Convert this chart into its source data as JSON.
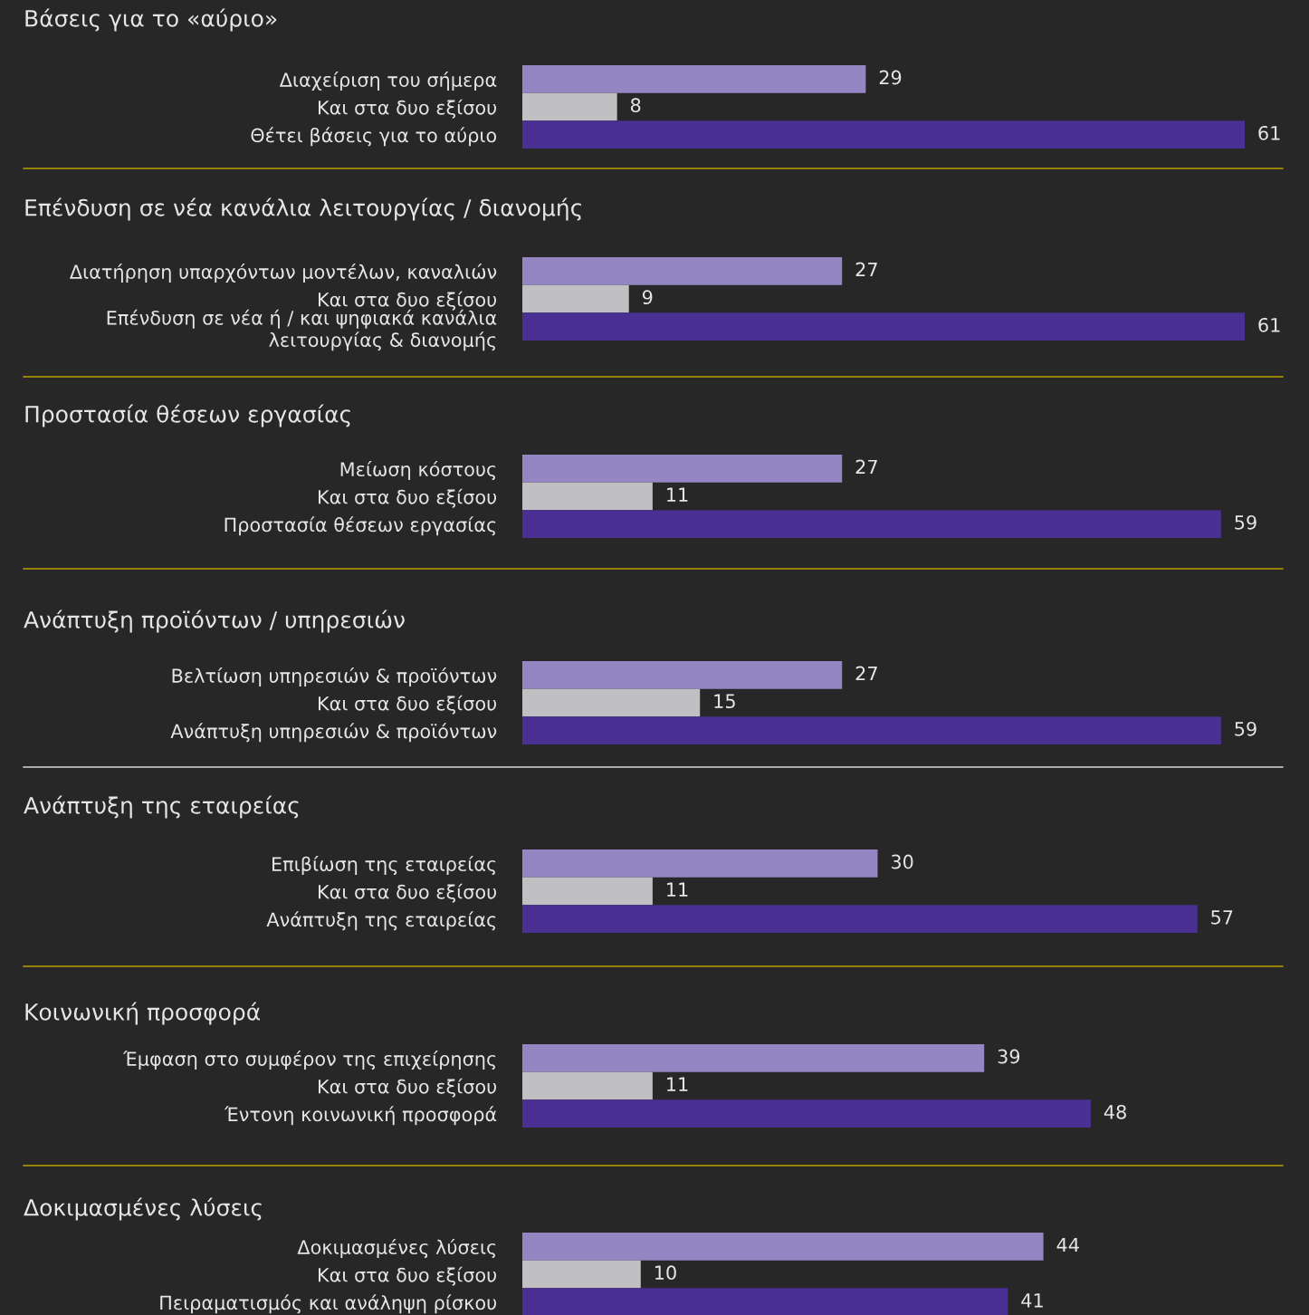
{
  "chart_data": [
    {
      "type": "bar",
      "orientation": "horizontal",
      "title": "Βάσεις για το «αύριο»",
      "categories": [
        "Διαχείριση του σήμερα",
        "Και στα δυο εξίσου",
        "Θέτει βάσεις για το αύριο"
      ],
      "values": [
        29,
        8,
        61
      ],
      "colors": [
        "#9386c2",
        "#c0c0c2",
        "#4b3093"
      ],
      "data_labels": true
    },
    {
      "type": "bar",
      "orientation": "horizontal",
      "title": "Επένδυση σε νέα κανάλια λειτουργίας / διανομής",
      "categories": [
        "Διατήρηση υπαρχόντων μοντέλων, καναλιών",
        "Και στα δυο εξίσου",
        "Επένδυση σε νέα ή / και ψηφιακά κανάλια\nλειτουργίας & διανομής"
      ],
      "values": [
        27,
        9,
        61
      ],
      "colors": [
        "#9386c2",
        "#c0c0c2",
        "#4b3093"
      ],
      "data_labels": true
    },
    {
      "type": "bar",
      "orientation": "horizontal",
      "title": "Προστασία θέσεων εργασίας",
      "categories": [
        "Μείωση κόστους",
        "Και στα δυο εξίσου",
        "Προστασία θέσεων εργασίας"
      ],
      "values": [
        27,
        11,
        59
      ],
      "colors": [
        "#9386c2",
        "#c0c0c2",
        "#4b3093"
      ],
      "data_labels": true
    },
    {
      "type": "bar",
      "orientation": "horizontal",
      "title": "Ανάπτυξη προϊόντων / υπηρεσιών",
      "categories": [
        "Βελτίωση υπηρεσιών & προϊόντων",
        "Και στα δυο εξίσου",
        "Ανάπτυξη υπηρεσιών & προϊόντων"
      ],
      "values": [
        27,
        15,
        59
      ],
      "colors": [
        "#9386c2",
        "#c0c0c2",
        "#4b3093"
      ],
      "data_labels": true
    },
    {
      "type": "bar",
      "orientation": "horizontal",
      "title": "Ανάπτυξη της εταιρείας",
      "categories": [
        "Επιβίωση της εταιρείας",
        "Και στα δυο εξίσου",
        "Ανάπτυξη της εταιρείας"
      ],
      "values": [
        30,
        11,
        57
      ],
      "colors": [
        "#9386c2",
        "#c0c0c2",
        "#4b3093"
      ],
      "data_labels": true
    },
    {
      "type": "bar",
      "orientation": "horizontal",
      "title": "Κοινωνική προσφορά",
      "categories": [
        "Έμφαση στο συμφέρον της επιχείρησης",
        "Και στα δυο εξίσου",
        "Έντονη κοινωνική προσφορά"
      ],
      "values": [
        39,
        11,
        48
      ],
      "colors": [
        "#9386c2",
        "#c0c0c2",
        "#4b3093"
      ],
      "data_labels": true
    },
    {
      "type": "bar",
      "orientation": "horizontal",
      "title": "Δοκιμασμένες λύσεις",
      "categories": [
        "Δοκιμασμένες λύσεις",
        "Και στα δυο εξίσου",
        "Πειραματισμός και ανάληψη ρίσκου"
      ],
      "values": [
        44,
        10,
        41
      ],
      "colors": [
        "#9386c2",
        "#c0c0c2",
        "#4b3093"
      ],
      "data_labels": true
    }
  ]
}
